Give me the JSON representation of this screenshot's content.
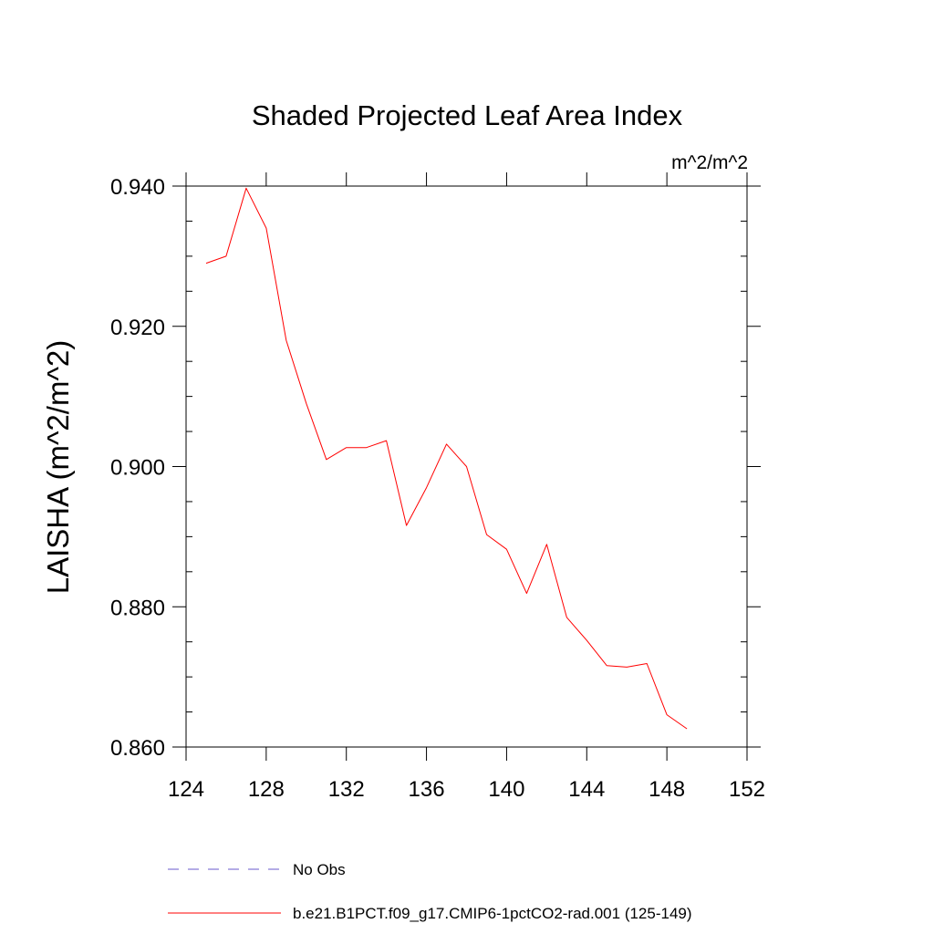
{
  "chart_data": {
    "type": "line",
    "title": "Shaded Projected Leaf Area Index",
    "units_label": "m^2/m^2",
    "ylabel": "LAISHA  (m^2/m^2)",
    "xlabel": "",
    "xlim": [
      124,
      152
    ],
    "ylim": [
      0.86,
      0.94
    ],
    "x_ticks": [
      "124",
      "128",
      "132",
      "136",
      "140",
      "144",
      "148",
      "152"
    ],
    "y_ticks": [
      "0.860",
      "0.880",
      "0.900",
      "0.920",
      "0.940"
    ],
    "grid": false,
    "legend_position": "bottom",
    "series": [
      {
        "name": "No Obs",
        "color": "#6a5acd",
        "style": "dashed",
        "x": [],
        "y": []
      },
      {
        "name": "b.e21.B1PCT.f09_g17.CMIP6-1pctCO2-rad.001 (125-149)",
        "color": "#ff0000",
        "style": "solid",
        "x": [
          125,
          126,
          127,
          128,
          129,
          130,
          131,
          132,
          133,
          134,
          135,
          136,
          137,
          138,
          139,
          140,
          141,
          142,
          143,
          144,
          145,
          146,
          147,
          148,
          149
        ],
        "y": [
          0.929,
          0.93,
          0.9397,
          0.934,
          0.918,
          0.909,
          0.901,
          0.9027,
          0.9027,
          0.9037,
          0.8916,
          0.897,
          0.9032,
          0.9,
          0.8903,
          0.8882,
          0.8819,
          0.8889,
          0.8785,
          0.8752,
          0.8716,
          0.8714,
          0.8719,
          0.8646,
          0.8626
        ]
      }
    ]
  }
}
